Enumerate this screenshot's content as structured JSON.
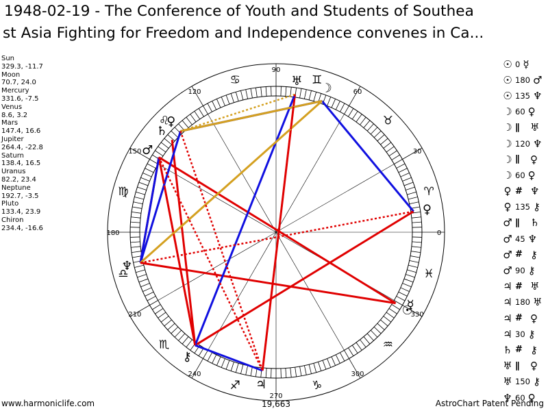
{
  "title_line1": "1948-02-19 - The Conference of Youth and Students of Southea",
  "title_line2": "st Asia Fighting for Freedom and Independence convenes in Ca...",
  "planets": [
    {
      "name": "Sun",
      "values": "329.3, -11.7"
    },
    {
      "name": "Moon",
      "values": "70.7, 24.0"
    },
    {
      "name": "Mercury",
      "values": "331.6, -7.5"
    },
    {
      "name": "Venus",
      "values": "8.6, 3.2"
    },
    {
      "name": "Mars",
      "values": "147.4, 16.6"
    },
    {
      "name": "Jupiter",
      "values": "264.4, -22.8"
    },
    {
      "name": "Saturn",
      "values": "138.4, 16.5"
    },
    {
      "name": "Uranus",
      "values": "82.2, 23.4"
    },
    {
      "name": "Neptune",
      "values": "192.7, -3.5"
    },
    {
      "name": "Pluto",
      "values": "133.4, 23.9"
    },
    {
      "name": "Chiron",
      "values": "234.4, -16.6"
    }
  ],
  "aspects": [
    {
      "p1": "☉",
      "aspect": "0",
      "p2": "☿"
    },
    {
      "p1": "☉",
      "aspect": "180",
      "p2": "♂"
    },
    {
      "p1": "☉",
      "aspect": "135",
      "p2": "♆"
    },
    {
      "p1": "☽",
      "aspect": "60",
      "p2": "♀"
    },
    {
      "p1": "☽",
      "aspect": "∥",
      "p2": "♅"
    },
    {
      "p1": "☽",
      "aspect": "120",
      "p2": "♆"
    },
    {
      "p1": "☽",
      "aspect": "∥",
      "p2": "♀"
    },
    {
      "p1": "☽",
      "aspect": "60",
      "p2": "♀"
    },
    {
      "p1": "♀",
      "aspect": "#",
      "p2": "♆"
    },
    {
      "p1": "♀",
      "aspect": "135",
      "p2": "⚷"
    },
    {
      "p1": "♂",
      "aspect": "∥",
      "p2": "♄"
    },
    {
      "p1": "♂",
      "aspect": "45",
      "p2": "♆"
    },
    {
      "p1": "♂",
      "aspect": "#",
      "p2": "⚷"
    },
    {
      "p1": "♂",
      "aspect": "90",
      "p2": "⚷"
    },
    {
      "p1": "♃",
      "aspect": "#",
      "p2": "♅"
    },
    {
      "p1": "♃",
      "aspect": "180",
      "p2": "♅"
    },
    {
      "p1": "♃",
      "aspect": "#",
      "p2": "♀"
    },
    {
      "p1": "♃",
      "aspect": "30",
      "p2": "⚷"
    },
    {
      "p1": "♄",
      "aspect": "#",
      "p2": "⚷"
    },
    {
      "p1": "♅",
      "aspect": "∥",
      "p2": "♀"
    },
    {
      "p1": "♅",
      "aspect": "150",
      "p2": "⚷"
    },
    {
      "p1": "♆",
      "aspect": "60",
      "p2": "♀"
    }
  ],
  "wheel": {
    "degree_labels": [
      "0",
      "30",
      "60",
      "90",
      "120",
      "150",
      "180",
      "210",
      "240",
      "270",
      "300",
      "330"
    ],
    "signs": [
      "♈",
      "♉",
      "♊",
      "♋",
      "♌",
      "♍",
      "♎",
      "♏",
      "♐",
      "♑",
      "♒",
      "♓"
    ],
    "planet_glyphs": [
      {
        "id": "sun",
        "glyph": "☉",
        "lon": 329.3
      },
      {
        "id": "moon",
        "glyph": "☽",
        "lon": 70.7
      },
      {
        "id": "mercury",
        "glyph": "☿",
        "lon": 331.6
      },
      {
        "id": "venus",
        "glyph": "♀",
        "lon": 8.6
      },
      {
        "id": "mars",
        "glyph": "♂",
        "lon": 147.4
      },
      {
        "id": "jupiter",
        "glyph": "♃",
        "lon": 264.4
      },
      {
        "id": "saturn",
        "glyph": "♄",
        "lon": 138.4
      },
      {
        "id": "uranus",
        "glyph": "♅",
        "lon": 82.2
      },
      {
        "id": "neptune",
        "glyph": "♆",
        "lon": 192.7
      },
      {
        "id": "pluto",
        "glyph": "♀",
        "lon": 133.4
      },
      {
        "id": "chiron",
        "glyph": "⚷",
        "lon": 234.4
      }
    ],
    "aspect_lines": [
      {
        "from": "mars",
        "to": "sun",
        "color": "#e00000",
        "dash": false
      },
      {
        "from": "jupiter",
        "to": "uranus",
        "color": "#e00000",
        "dash": false
      },
      {
        "from": "mars",
        "to": "chiron",
        "color": "#e00000",
        "dash": false
      },
      {
        "from": "neptune",
        "to": "sun",
        "color": "#e00000",
        "dash": false
      },
      {
        "from": "venus",
        "to": "chiron",
        "color": "#e00000",
        "dash": false
      },
      {
        "from": "mars",
        "to": "neptune",
        "color": "#e00000",
        "dash": false
      },
      {
        "from": "saturn",
        "to": "chiron",
        "color": "#e00000",
        "dash": false
      },
      {
        "from": "moon",
        "to": "pluto",
        "color": "#1010e0",
        "dash": false
      },
      {
        "from": "moon",
        "to": "venus",
        "color": "#1010e0",
        "dash": false
      },
      {
        "from": "chiron",
        "to": "uranus",
        "color": "#1010e0",
        "dash": false
      },
      {
        "from": "mars",
        "to": "neptune",
        "color": "#1010e0",
        "dash": false
      },
      {
        "from": "pluto",
        "to": "neptune",
        "color": "#1010e0",
        "dash": false
      },
      {
        "from": "chiron",
        "to": "jupiter",
        "color": "#1010e0",
        "dash": false
      },
      {
        "from": "moon",
        "to": "neptune",
        "color": "#d4a020",
        "dash": false
      },
      {
        "from": "pluto",
        "to": "moon",
        "color": "#d4a020",
        "dash": false
      },
      {
        "from": "uranus",
        "to": "pluto",
        "color": "#d4a020",
        "dash": true
      },
      {
        "from": "neptune",
        "to": "venus",
        "color": "#e00000",
        "dash": true
      },
      {
        "from": "mars",
        "to": "jupiter",
        "color": "#e00000",
        "dash": true
      },
      {
        "from": "pluto",
        "to": "jupiter",
        "color": "#e00000",
        "dash": true
      },
      {
        "from": "uranus",
        "to": "jupiter",
        "color": "#e00000",
        "dash": true
      },
      {
        "from": "mars",
        "to": "chiron",
        "color": "#e00000",
        "dash": true
      }
    ]
  },
  "center_label": "19,663",
  "footer_left": "www.harmoniclife.com",
  "footer_right": "AstroChart Patent Pending"
}
